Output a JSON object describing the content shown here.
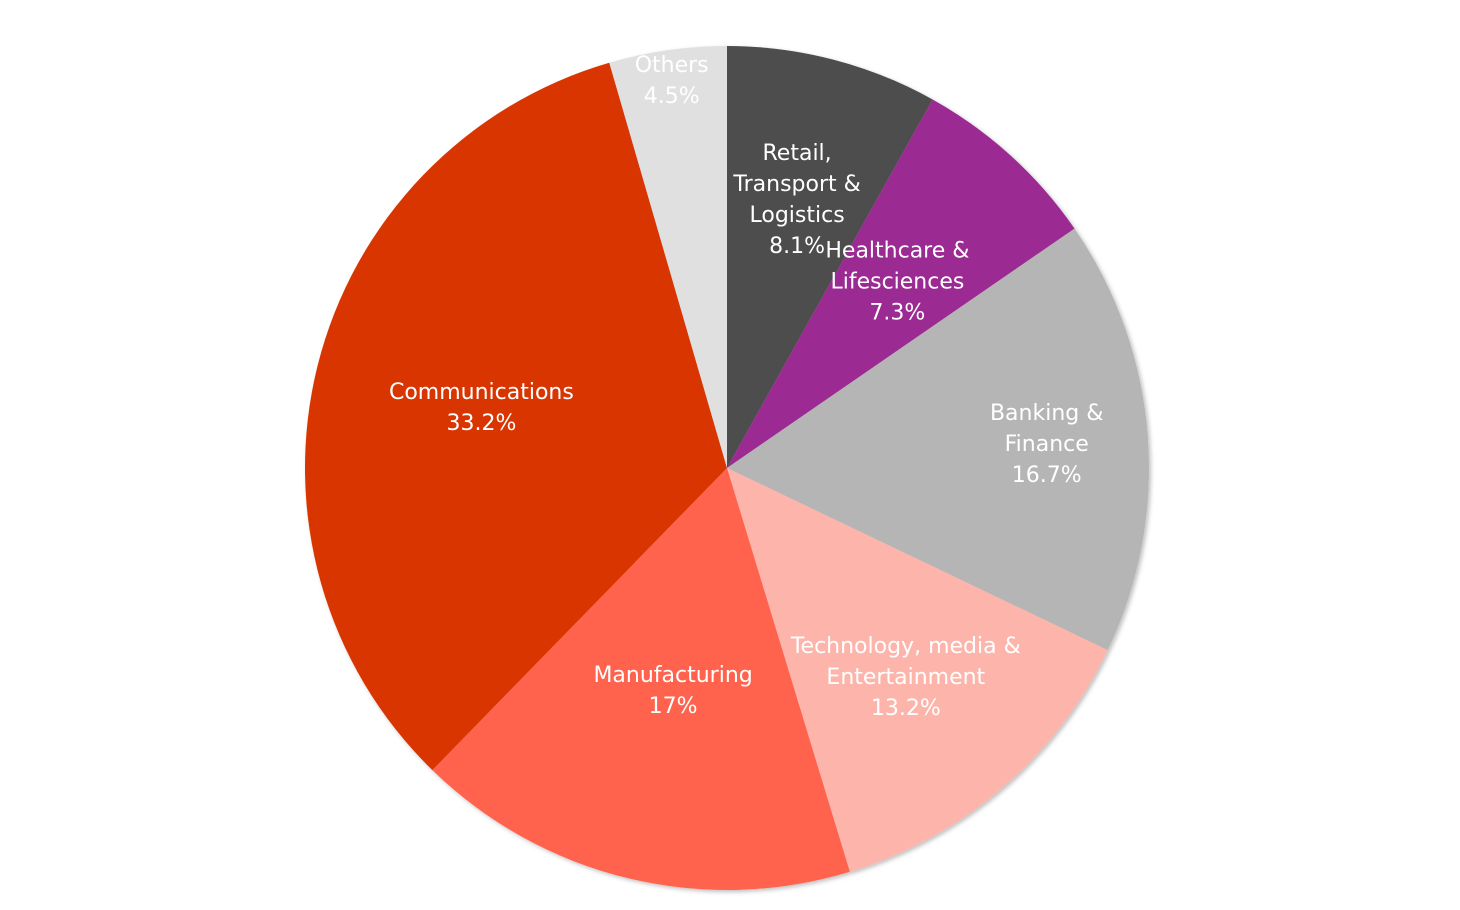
{
  "chart_data": {
    "type": "pie",
    "title": "",
    "start_angle_deg": 0,
    "direction": "clockwise",
    "slices": [
      {
        "name": "Retail, Transport & Logistics",
        "label_lines": [
          "Retail,",
          "Transport &",
          "Logistics"
        ],
        "value": 8.1,
        "value_label": "8.1%",
        "color": "#4d4d4d",
        "text_color": "#ffffff"
      },
      {
        "name": "Healthcare & Lifesciences",
        "label_lines": [
          "Healthcare &",
          "Lifesciences"
        ],
        "value": 7.3,
        "value_label": "7.3%",
        "color": "#9c2a93",
        "text_color": "#ffffff"
      },
      {
        "name": "Banking & Finance",
        "label_lines": [
          "Banking &",
          "Finance"
        ],
        "value": 16.7,
        "value_label": "16.7%",
        "color": "#b5b5b5",
        "text_color": "#ffffff"
      },
      {
        "name": "Technology, media & Entertainment",
        "label_lines": [
          "Technology, media &",
          "Entertainment"
        ],
        "value": 13.2,
        "value_label": "13.2%",
        "color": "#fdb4aa",
        "text_color": "#ffffff"
      },
      {
        "name": "Manufacturing",
        "label_lines": [
          "Manufacturing"
        ],
        "value": 17,
        "value_label": "17%",
        "color": "#ff634d",
        "text_color": "#ffffff"
      },
      {
        "name": "Communications",
        "label_lines": [
          "Communications"
        ],
        "value": 33.2,
        "value_label": "33.2%",
        "color": "#d93500",
        "text_color": "#ffffff"
      },
      {
        "name": "Others",
        "label_lines": [
          "Others"
        ],
        "value": 4.5,
        "value_label": "4.5%",
        "color": "#e0e0e0",
        "text_color": "#333333"
      }
    ]
  }
}
